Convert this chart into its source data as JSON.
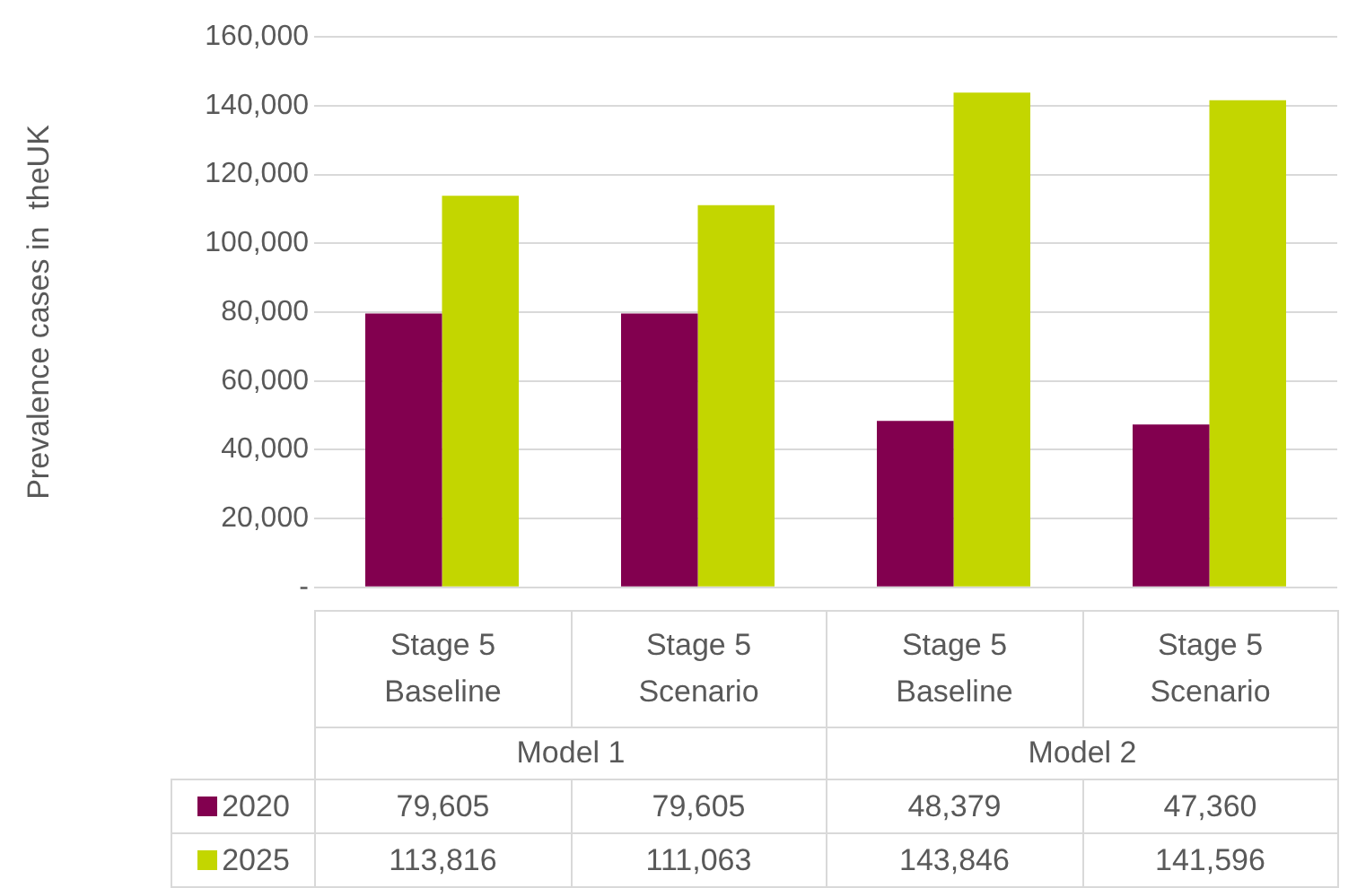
{
  "chart_data": {
    "type": "bar",
    "ylabel": "Prevalence cases in  theUK",
    "categories": [
      "Stage 5 Baseline",
      "Stage 5 Scenario",
      "Stage 5 Baseline",
      "Stage 5 Scenario"
    ],
    "annotations": [
      "Model 1",
      "Model 2"
    ],
    "series": [
      {
        "name": "2020",
        "color": "#82004f",
        "values": [
          79605,
          79605,
          48379,
          47360
        ],
        "value_labels": [
          "79,605",
          "79,605",
          "48,379",
          "47,360"
        ]
      },
      {
        "name": "2025",
        "color": "#c3d600",
        "values": [
          113816,
          111063,
          143846,
          141596
        ],
        "value_labels": [
          "113,816",
          "111,063",
          "143,846",
          "141,596"
        ]
      }
    ],
    "ylim": [
      0,
      160000
    ],
    "yticks": [
      {
        "value": 0,
        "label": "-"
      },
      {
        "value": 20000,
        "label": "20,000"
      },
      {
        "value": 40000,
        "label": "40,000"
      },
      {
        "value": 60000,
        "label": "60,000"
      },
      {
        "value": 80000,
        "label": "80,000"
      },
      {
        "value": 100000,
        "label": "100,000"
      },
      {
        "value": 120000,
        "label": "120,000"
      },
      {
        "value": 140000,
        "label": "140,000"
      },
      {
        "value": 160000,
        "label": "160,000"
      }
    ],
    "grid": "y",
    "legend": "bottom"
  }
}
